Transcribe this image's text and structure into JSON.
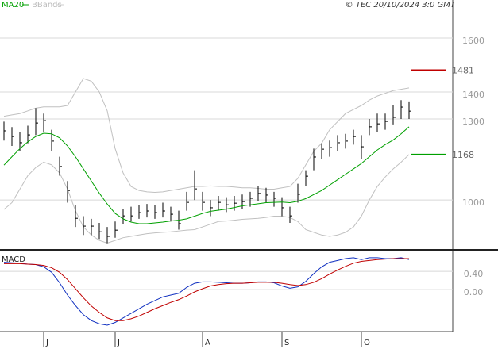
{
  "chart_data": [
    {
      "type": "ohlc",
      "legend": [
        "MA20",
        "BBands"
      ],
      "source": "© TEC 20/10/2024 3:0 GMT",
      "categories": [
        null,
        null,
        null,
        null,
        null,
        "J",
        null,
        null,
        null,
        null,
        null,
        null,
        null,
        null,
        "J",
        null,
        null,
        null,
        null,
        null,
        null,
        null,
        null,
        null,
        null,
        "A",
        null,
        null,
        null,
        null,
        null,
        null,
        null,
        null,
        null,
        "S",
        null,
        null,
        null,
        null,
        null,
        null,
        null,
        null,
        null,
        "O",
        null,
        null,
        null,
        null,
        null,
        null
      ],
      "close": [
        1256,
        1235,
        1212,
        1241,
        1285,
        1294,
        1218,
        1124,
        1035,
        932,
        903,
        903,
        882,
        865,
        888,
        941,
        941,
        953,
        959,
        953,
        959,
        947,
        912,
        991,
        1041,
        991,
        971,
        991,
        982,
        988,
        994,
        1006,
        1024,
        1018,
        1006,
        971,
        941,
        1021,
        1088,
        1159,
        1188,
        1194,
        1212,
        1218,
        1235,
        1197,
        1271,
        1282,
        1291,
        1306,
        1344,
        1329
      ],
      "high": [
        1290,
        1270,
        1250,
        1275,
        1340,
        1320,
        1260,
        1160,
        1070,
        980,
        940,
        930,
        915,
        900,
        920,
        965,
        975,
        980,
        985,
        980,
        990,
        975,
        960,
        1030,
        1110,
        1030,
        1000,
        1015,
        1010,
        1015,
        1020,
        1030,
        1050,
        1045,
        1030,
        1010,
        975,
        1060,
        1110,
        1190,
        1210,
        1220,
        1240,
        1245,
        1260,
        1240,
        1300,
        1320,
        1320,
        1350,
        1370,
        1365
      ],
      "low": [
        1220,
        1200,
        1180,
        1210,
        1240,
        1250,
        1180,
        1090,
        990,
        900,
        870,
        870,
        855,
        840,
        860,
        910,
        920,
        930,
        935,
        930,
        935,
        920,
        890,
        960,
        1000,
        960,
        940,
        960,
        955,
        960,
        965,
        975,
        995,
        990,
        975,
        940,
        915,
        990,
        1050,
        1110,
        1150,
        1160,
        1180,
        1190,
        1205,
        1150,
        1240,
        1250,
        1260,
        1280,
        1300,
        1300
      ],
      "bar_color": "#000000",
      "ma": {
        "color": "#00a000",
        "values": [
          1129,
          1160,
          1190,
          1215,
          1235,
          1247,
          1245,
          1230,
          1200,
          1160,
          1115,
          1070,
          1025,
          985,
          950,
          930,
          918,
          912,
          912,
          915,
          918,
          922,
          925,
          930,
          940,
          950,
          958,
          962,
          966,
          972,
          978,
          982,
          986,
          990,
          991,
          992,
          990,
          995,
          1005,
          1020,
          1035,
          1055,
          1075,
          1095,
          1115,
          1135,
          1160,
          1185,
          1205,
          1222,
          1245,
          1271
        ]
      },
      "bands": {
        "color": "#c0c0c0",
        "upper": [
          1310,
          1315,
          1320,
          1330,
          1340,
          1345,
          1345,
          1345,
          1350,
          1400,
          1450,
          1440,
          1400,
          1330,
          1190,
          1100,
          1050,
          1035,
          1030,
          1028,
          1030,
          1035,
          1040,
          1045,
          1050,
          1050,
          1052,
          1050,
          1050,
          1048,
          1045,
          1045,
          1043,
          1040,
          1040,
          1045,
          1050,
          1080,
          1130,
          1180,
          1210,
          1260,
          1290,
          1320,
          1335,
          1350,
          1370,
          1385,
          1395,
          1405,
          1410,
          1415
        ],
        "lower": [
          965,
          990,
          1040,
          1090,
          1120,
          1140,
          1130,
          1100,
          1040,
          960,
          900,
          870,
          850,
          840,
          850,
          860,
          865,
          870,
          875,
          878,
          880,
          882,
          885,
          888,
          890,
          900,
          910,
          920,
          922,
          925,
          928,
          930,
          932,
          935,
          940,
          940,
          935,
          920,
          890,
          880,
          870,
          865,
          870,
          880,
          900,
          940,
          1000,
          1050,
          1085,
          1115,
          1140,
          1168
        ]
      },
      "annotations": [
        {
          "value": 1481,
          "color": "#c00000"
        },
        {
          "value": 1168,
          "color": "#00a000"
        }
      ],
      "ylim": [
        815,
        1741
      ],
      "yticks": [
        1000,
        1300,
        1400,
        1600
      ],
      "grid": true
    },
    {
      "type": "macd",
      "title": "MACD",
      "series": [
        {
          "color": "#1030c0",
          "values": [
            0.6,
            0.59,
            0.58,
            0.56,
            0.55,
            0.5,
            0.38,
            0.15,
            -0.12,
            -0.35,
            -0.55,
            -0.68,
            -0.75,
            -0.78,
            -0.72,
            -0.62,
            -0.52,
            -0.42,
            -0.32,
            -0.24,
            -0.16,
            -0.12,
            -0.08,
            0.05,
            0.14,
            0.17,
            0.17,
            0.16,
            0.15,
            0.14,
            0.14,
            0.15,
            0.17,
            0.17,
            0.15,
            0.08,
            0.03,
            0.06,
            0.18,
            0.35,
            0.5,
            0.6,
            0.64,
            0.68,
            0.7,
            0.66,
            0.7,
            0.7,
            0.68,
            0.68,
            0.7,
            0.66
          ]
        },
        {
          "color": "#c00000",
          "values": [
            0.57,
            0.57,
            0.57,
            0.56,
            0.55,
            0.53,
            0.48,
            0.38,
            0.22,
            0.02,
            -0.18,
            -0.36,
            -0.5,
            -0.62,
            -0.68,
            -0.68,
            -0.64,
            -0.58,
            -0.5,
            -0.42,
            -0.35,
            -0.28,
            -0.22,
            -0.14,
            -0.05,
            0.02,
            0.08,
            0.11,
            0.13,
            0.14,
            0.14,
            0.15,
            0.16,
            0.16,
            0.16,
            0.14,
            0.11,
            0.09,
            0.11,
            0.16,
            0.24,
            0.34,
            0.43,
            0.51,
            0.58,
            0.62,
            0.64,
            0.66,
            0.67,
            0.68,
            0.68,
            0.68
          ]
        }
      ],
      "ylim": [
        -0.92,
        0.82
      ],
      "yticks": [
        {
          "value": 0.4,
          "label": "0.40"
        },
        {
          "value": 0,
          "label": "0.00"
        }
      ],
      "grid": true
    }
  ]
}
